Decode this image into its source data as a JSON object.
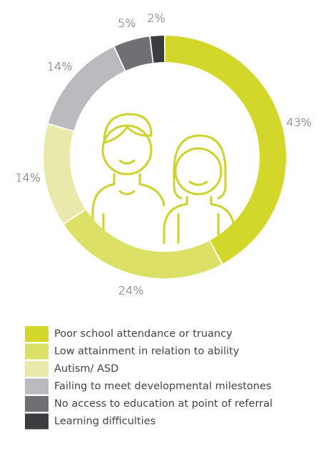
{
  "chart_data": {
    "type": "donut",
    "categories": [
      "Poor school attendance or truancy",
      "Low attainment in relation to ability",
      "Autism/ ASD",
      "Failing to meet developmental milestones",
      "No access to education at point of referral",
      "Learning difficulties"
    ],
    "values": [
      43,
      24,
      14,
      14,
      5,
      2
    ],
    "value_labels": [
      "43%",
      "24%",
      "14%",
      "14%",
      "5%",
      "2%"
    ],
    "colors": [
      "#d2d72a",
      "#dde067",
      "#e9eaa9",
      "#b9babc",
      "#6f7072",
      "#3b3c3e"
    ]
  }
}
